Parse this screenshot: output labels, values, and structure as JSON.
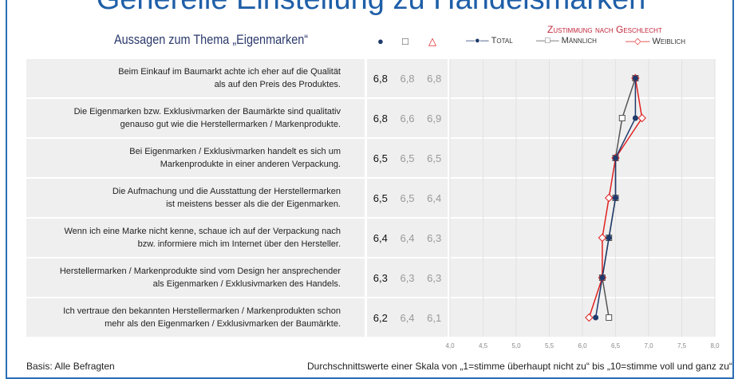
{
  "title": "Generelle Einstellung zu Handelsmarken",
  "subtitle": "Aussagen zum Thema „Eigenmarken“",
  "column_icons": [
    "circle",
    "square",
    "triangle"
  ],
  "gender_label": "Zustimmung nach Geschlecht",
  "legend": [
    {
      "label": "Total",
      "color": "#1f3a6b"
    },
    {
      "label": "Männlich",
      "color": "#555555"
    },
    {
      "label": "Weiblich",
      "color": "#e02020"
    }
  ],
  "footer_left": "Basis: Alle Befragten",
  "footer_right": "Durchschnittswerte einer Skala von „1=stimme überhaupt nicht zu“ bis „10=stimme voll und ganz zu“",
  "chart_data": {
    "type": "line",
    "title": "Generelle Einstellung zu Handelsmarken",
    "xlim": [
      4.0,
      8.0
    ],
    "x_ticks": [
      "4,0",
      "4,5",
      "5,0",
      "5,5",
      "6,0",
      "6,5",
      "7,0",
      "7,5",
      "8,0"
    ],
    "categories": [
      [
        "Beim Einkauf im Baumarkt achte ich eher auf die Qualität",
        "als auf den Preis des Produktes."
      ],
      [
        "Die Eigenmarken bzw. Exklusivmarken der Baumärkte sind qualitativ",
        "genauso gut wie die Herstellermarken / Markenprodukte."
      ],
      [
        "Bei Eigenmarken / Exklusivmarken handelt es sich um",
        "Markenprodukte in einer anderen Verpackung."
      ],
      [
        "Die Aufmachung und die Ausstattung der Herstellermarken",
        "ist meistens besser als die der Eigenmarken."
      ],
      [
        "Wenn ich eine Marke nicht kenne, schaue ich auf der Verpackung nach",
        "bzw. informiere mich im Internet über den Hersteller."
      ],
      [
        "Herstellermarken / Markenprodukte sind vom Design her ansprechender",
        "als Eigenmarken / Exklusivmarken des Handels."
      ],
      [
        "Ich vertraue den bekannten Herstellermarken / Markenprodukten schon",
        "mehr als den Eigenmarken / Exklusivmarken der Baumärkte."
      ]
    ],
    "series": [
      {
        "name": "Total",
        "values": [
          6.8,
          6.8,
          6.5,
          6.5,
          6.4,
          6.3,
          6.2
        ],
        "labels": [
          "6,8",
          "6,8",
          "6,5",
          "6,5",
          "6,4",
          "6,3",
          "6,2"
        ]
      },
      {
        "name": "Männlich",
        "values": [
          6.8,
          6.6,
          6.5,
          6.5,
          6.4,
          6.3,
          6.4
        ],
        "labels": [
          "6,8",
          "6,6",
          "6,5",
          "6,5",
          "6,4",
          "6,3",
          "6,4"
        ]
      },
      {
        "name": "Weiblich",
        "values": [
          6.8,
          6.9,
          6.5,
          6.4,
          6.3,
          6.3,
          6.1
        ],
        "labels": [
          "6,8",
          "6,9",
          "6,5",
          "6,4",
          "6,3",
          "6,3",
          "6,1"
        ]
      }
    ]
  }
}
